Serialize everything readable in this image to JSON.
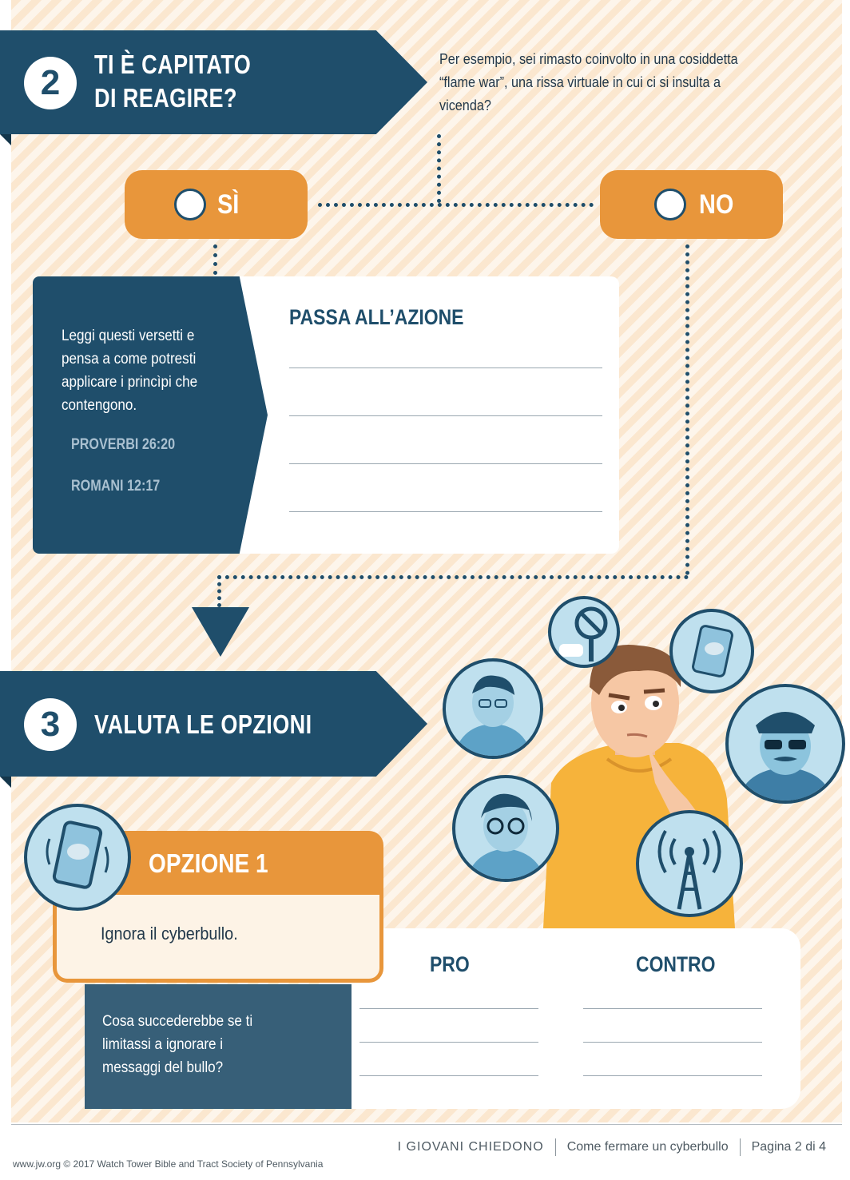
{
  "section2": {
    "number": "2",
    "title_line1": "TI È CAPITATO",
    "title_line2": "DI REAGIRE?",
    "intro": "Per esempio, sei rimasto coinvolto in una cosiddetta “flame war”, una rissa virtuale in cui ci si insulta a vicenda?"
  },
  "choices": {
    "yes_label": "SÌ",
    "no_label": "NO"
  },
  "action_card": {
    "instruction": "Leggi questi versetti e pensa a come potresti applicare i princìpi che contengono.",
    "verses": [
      "PROVERBI 26:20",
      "ROMANI 12:17"
    ],
    "heading": "PASSA ALL’AZIONE"
  },
  "section3": {
    "number": "3",
    "title": "VALUTA LE OPZIONI"
  },
  "option1": {
    "title": "OPZIONE 1",
    "text": "Ignora il cyberbullo.",
    "question": "Cosa succederebbe se ti limitassi a ignorare i messaggi del bullo?",
    "pro_label": "PRO",
    "contro_label": "CONTRO"
  },
  "illustration": {
    "icons": [
      "phone-icon",
      "stop-sign-icon",
      "man-icon",
      "police-officer-icon",
      "woman-icon",
      "signal-tower-icon",
      "thinking-boy"
    ]
  },
  "footer": {
    "series": "I GIOVANI CHIEDONO",
    "article": "Come fermare un cyberbullo",
    "page": "Pagina 2 di 4",
    "copyright": "www.jw.org © 2017 Watch Tower Bible and Tract Society of Pennsylvania"
  },
  "colors": {
    "navy": "#1f4e6b",
    "orange": "#e8963b",
    "stripe": "#fbe7cf"
  }
}
